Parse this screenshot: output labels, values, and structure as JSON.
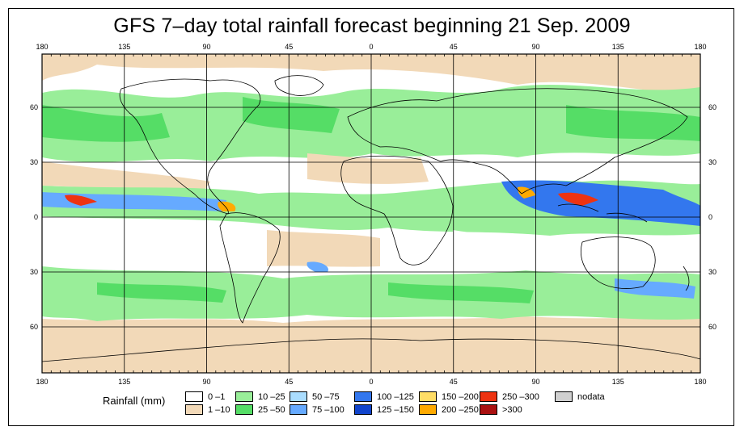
{
  "title": "GFS 7–day total rainfall forecast beginning 21 Sep. 2009",
  "axes": {
    "lon_ticks": [
      "180",
      "135",
      "90",
      "45",
      "0",
      "45",
      "90",
      "135",
      "180"
    ],
    "lat_ticks": [
      "60",
      "30",
      "0",
      "30",
      "60"
    ]
  },
  "legend": {
    "title": "Rainfall (mm)",
    "items": [
      {
        "label": "0 –1",
        "color": "#ffffff"
      },
      {
        "label": "1 –10",
        "color": "#f2d9b8"
      },
      {
        "label": "10 –25",
        "color": "#99ee99"
      },
      {
        "label": "25 –50",
        "color": "#55dd66"
      },
      {
        "label": "50 –75",
        "color": "#aaddff"
      },
      {
        "label": "75 –100",
        "color": "#66aaff"
      },
      {
        "label": "100 –125",
        "color": "#3377ee"
      },
      {
        "label": "125 –150",
        "color": "#1144cc"
      },
      {
        "label": "150 –200",
        "color": "#ffdd66"
      },
      {
        "label": "200 –250",
        "color": "#ffaa00"
      },
      {
        "label": "250 –300",
        "color": "#ee3311"
      },
      {
        "label": ">300",
        "color": "#aa1111"
      },
      {
        "label": "nodata",
        "color": "#d0d0d0"
      }
    ]
  },
  "colors": {
    "ocean_base": "#ffffff",
    "land_outline": "#000000",
    "grid": "#000000"
  }
}
